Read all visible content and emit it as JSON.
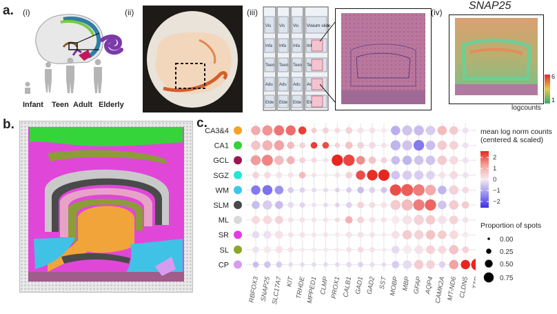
{
  "panel_a": {
    "letter": "a.",
    "sub_labels": [
      "(i)",
      "(ii)",
      "(iii)",
      "(iv)"
    ],
    "age_groups": [
      "Infant",
      "Teen",
      "Adult",
      "Elderly"
    ],
    "slide_columns": [
      "Visium slide"
    ],
    "slide_rows": [
      "Infant",
      "Teen",
      "Adult",
      "Elderly"
    ],
    "slide_col_abbrev": "Vis",
    "row_abbrev": [
      "Infa",
      "Teen",
      "Adu",
      "Elde"
    ],
    "gene_title": "SNAP25",
    "colorbar_max": "6",
    "colorbar_min": "1",
    "colorbar_label": "logcounts"
  },
  "panel_b": {
    "letter": "b."
  },
  "panel_c": {
    "letter": "c."
  },
  "chart_data": {
    "type": "scatter",
    "subtype": "dotplot",
    "rows": [
      "CA3&4",
      "CA1",
      "GCL",
      "SGZ",
      "WM",
      "SLM",
      "ML",
      "SR",
      "SL",
      "CP"
    ],
    "row_colors": [
      "#f4a22b",
      "#34d338",
      "#9b1553",
      "#22e6d8",
      "#3ec6e8",
      "#4a4a4a",
      "#d9d9d9",
      "#e43ce4",
      "#8ca62b",
      "#d69cef"
    ],
    "genes": [
      "RBFOX3",
      "SNAP25",
      "SLC17A7",
      "KIT",
      "TRHDE",
      "MPPED1",
      "CLMP",
      "PROX1",
      "CALB1",
      "GAD1",
      "GAD2",
      "SST",
      "MOBP",
      "MBP",
      "GFAP",
      "AQP4",
      "CAMK2A",
      "MT-ND6",
      "CLDN5",
      "TTR"
    ],
    "color_legend_title": "mean log norm counts\n(centered & scaled)",
    "color_ticks": [
      "2",
      "1",
      "0",
      "−1",
      "−2"
    ],
    "color_range": [
      -2.5,
      2.5
    ],
    "size_legend_title": "Proportion of spots",
    "size_legend_values": [
      "0.00",
      "0.25",
      "0.50",
      "0.75"
    ],
    "color_values": [
      [
        0.8,
        1.1,
        1.5,
        1.6,
        2.2,
        0.4,
        0.3,
        0.2,
        0.3,
        0.1,
        0.1,
        0.0,
        -0.8,
        -0.5,
        -0.6,
        -0.4,
        0.6,
        0.4,
        -0.1,
        -0.2
      ],
      [
        0.5,
        0.7,
        0.9,
        0.6,
        0.3,
        2.2,
        2.0,
        0.3,
        0.5,
        0.3,
        0.2,
        0.1,
        -0.7,
        -0.5,
        -1.5,
        -0.6,
        0.4,
        0.3,
        -0.1,
        -0.2
      ],
      [
        1.0,
        1.3,
        0.6,
        0.7,
        0.3,
        0.2,
        0.1,
        2.5,
        2.1,
        1.2,
        0.5,
        0.3,
        -0.6,
        -0.7,
        -0.5,
        -0.5,
        0.4,
        0.2,
        -0.1,
        -0.2
      ],
      [
        0.3,
        0.2,
        0.1,
        0.1,
        0.6,
        0.1,
        0.0,
        0.1,
        0.3,
        2.0,
        2.4,
        2.5,
        -0.5,
        -0.4,
        -0.4,
        -0.3,
        0.1,
        0.2,
        -0.1,
        -0.2
      ],
      [
        -1.5,
        -1.6,
        -1.2,
        -0.4,
        -0.3,
        -0.2,
        -0.2,
        -0.3,
        -0.4,
        -0.6,
        -0.3,
        -0.5,
        2.0,
        1.8,
        1.4,
        0.8,
        -0.7,
        0.3,
        0.2,
        -0.2
      ],
      [
        -0.6,
        -0.4,
        -0.6,
        -0.2,
        -0.3,
        -0.1,
        -0.2,
        -0.3,
        -0.3,
        0.3,
        0.2,
        0.1,
        0.4,
        0.6,
        1.4,
        1.7,
        -0.5,
        0.4,
        0.4,
        -0.1
      ],
      [
        0.2,
        0.2,
        0.3,
        0.1,
        0.1,
        0.1,
        0.1,
        0.2,
        0.7,
        0.3,
        0.1,
        0.1,
        0.0,
        0.1,
        0.3,
        0.4,
        0.1,
        0.3,
        0.1,
        -0.1
      ],
      [
        -0.2,
        -0.1,
        0.1,
        0.1,
        0.1,
        0.1,
        0.1,
        0.0,
        0.1,
        0.1,
        0.1,
        0.0,
        0.1,
        0.4,
        0.3,
        0.5,
        0.4,
        0.2,
        0.0,
        -0.1
      ],
      [
        -0.1,
        0.0,
        0.1,
        0.1,
        0.0,
        0.0,
        0.0,
        0.0,
        0.1,
        0.2,
        0.1,
        0.0,
        -0.2,
        0.0,
        0.1,
        0.3,
        0.2,
        0.5,
        0.3,
        -0.1
      ],
      [
        -0.6,
        -0.5,
        -0.4,
        -0.2,
        -0.2,
        -0.2,
        -0.2,
        -0.2,
        -0.2,
        -0.3,
        -0.2,
        -0.2,
        -0.4,
        -0.2,
        0.4,
        0.3,
        -0.3,
        0.9,
        2.5,
        2.5
      ]
    ],
    "size_values": [
      [
        0.55,
        0.62,
        0.62,
        0.6,
        0.45,
        0.25,
        0.3,
        0.25,
        0.35,
        0.3,
        0.3,
        0.25,
        0.55,
        0.6,
        0.6,
        0.55,
        0.55,
        0.5,
        0.3,
        0.15
      ],
      [
        0.55,
        0.62,
        0.6,
        0.4,
        0.3,
        0.35,
        0.35,
        0.25,
        0.4,
        0.35,
        0.35,
        0.25,
        0.6,
        0.6,
        0.65,
        0.55,
        0.55,
        0.5,
        0.3,
        0.15
      ],
      [
        0.6,
        0.68,
        0.55,
        0.45,
        0.3,
        0.25,
        0.2,
        0.7,
        0.7,
        0.5,
        0.4,
        0.3,
        0.5,
        0.55,
        0.55,
        0.55,
        0.55,
        0.5,
        0.3,
        0.15
      ],
      [
        0.35,
        0.35,
        0.3,
        0.25,
        0.35,
        0.2,
        0.2,
        0.25,
        0.35,
        0.55,
        0.65,
        0.7,
        0.5,
        0.55,
        0.55,
        0.5,
        0.35,
        0.45,
        0.3,
        0.15
      ],
      [
        0.55,
        0.6,
        0.5,
        0.3,
        0.25,
        0.2,
        0.2,
        0.2,
        0.25,
        0.35,
        0.3,
        0.3,
        0.7,
        0.75,
        0.72,
        0.65,
        0.5,
        0.55,
        0.35,
        0.15
      ],
      [
        0.45,
        0.55,
        0.45,
        0.3,
        0.25,
        0.2,
        0.2,
        0.2,
        0.3,
        0.35,
        0.3,
        0.3,
        0.6,
        0.7,
        0.7,
        0.7,
        0.5,
        0.55,
        0.4,
        0.15
      ],
      [
        0.45,
        0.5,
        0.45,
        0.25,
        0.25,
        0.2,
        0.2,
        0.2,
        0.4,
        0.35,
        0.3,
        0.25,
        0.45,
        0.55,
        0.6,
        0.55,
        0.5,
        0.5,
        0.3,
        0.15
      ],
      [
        0.4,
        0.45,
        0.45,
        0.25,
        0.25,
        0.2,
        0.2,
        0.2,
        0.3,
        0.3,
        0.25,
        0.2,
        0.45,
        0.55,
        0.55,
        0.55,
        0.5,
        0.5,
        0.3,
        0.15
      ],
      [
        0.35,
        0.4,
        0.4,
        0.25,
        0.2,
        0.2,
        0.2,
        0.2,
        0.25,
        0.3,
        0.25,
        0.2,
        0.45,
        0.5,
        0.5,
        0.5,
        0.45,
        0.55,
        0.35,
        0.15
      ],
      [
        0.3,
        0.35,
        0.3,
        0.2,
        0.2,
        0.2,
        0.2,
        0.2,
        0.25,
        0.25,
        0.2,
        0.2,
        0.4,
        0.5,
        0.55,
        0.5,
        0.35,
        0.55,
        0.55,
        0.75
      ]
    ]
  },
  "colors": {
    "he_stain": "#b9779e",
    "he_stain_dark": "#8f4d77",
    "high": "#e8261f",
    "low": "#3a2ee8",
    "neutral": "#f6eaf0"
  }
}
